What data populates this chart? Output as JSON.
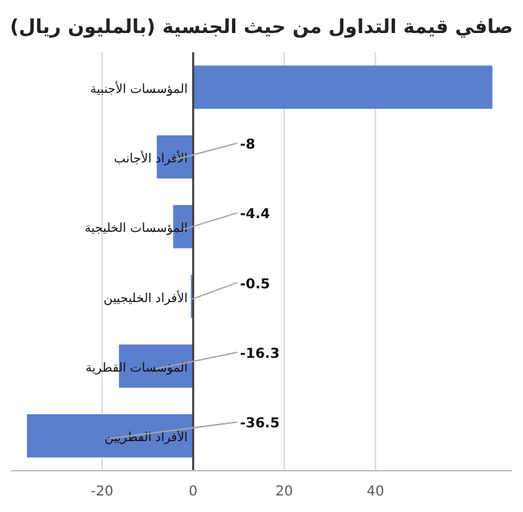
{
  "chart_data": {
    "type": "bar",
    "orientation": "horizontal",
    "title": "صافي قيمة التداول من حيث الجنسية (بالمليون ريال)",
    "categories": [
      "المؤسسات الأجنبية",
      "الأفراد الأجانب",
      "المؤسسات الخليجية",
      "الأفراد الخليجيين",
      "المؤسسات القطرية",
      "الأفراد القطريين"
    ],
    "values": [
      65.7,
      -8,
      -4.4,
      -0.5,
      -16.3,
      -36.5
    ],
    "value_labels": [
      null,
      "-8",
      "-4.4",
      "-0.5",
      "-16.3",
      "-36.5"
    ],
    "color": "#5b7fcc",
    "xlim": [
      -40,
      70
    ],
    "xticks": [
      -20,
      0,
      20,
      40
    ],
    "grid": "x"
  }
}
